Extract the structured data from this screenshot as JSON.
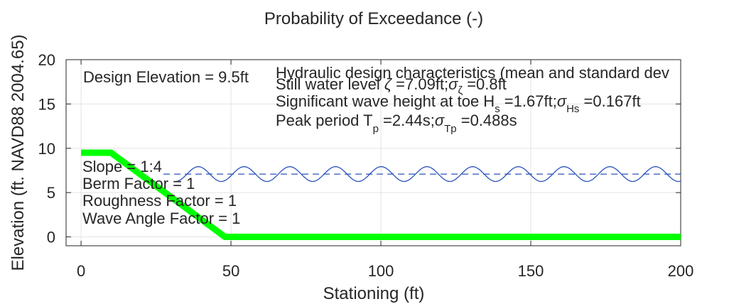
{
  "colors": {
    "profile": "#00ff00",
    "water": "#2a52be",
    "grid": "#e3e3e3",
    "text": "#262626",
    "axis": "#262626"
  },
  "chart_data": {
    "type": "line",
    "title": "Probability of Exceedance (-)",
    "xlabel": "Stationing (ft)",
    "ylabel": "Elevation (ft. NAVD88 2004.65)",
    "xlim": [
      -5,
      200
    ],
    "ylim": [
      -1,
      20
    ],
    "xticks": [
      0,
      50,
      100,
      150,
      200
    ],
    "yticks": [
      0,
      5,
      10,
      15,
      20
    ],
    "grid": true,
    "series": [
      {
        "type": "line",
        "style": "solid-thick",
        "x": [
          0,
          10,
          48,
          200
        ],
        "y": [
          9.5,
          9.5,
          0,
          0
        ]
      },
      {
        "type": "line",
        "style": "dashed",
        "x": [
          27.5,
          200
        ],
        "y": [
          7.09,
          7.09
        ]
      },
      {
        "type": "wave",
        "style": "solid-thin",
        "x_start": 31.5,
        "x_end": 200,
        "mean": 7.09,
        "amplitude": 0.835,
        "period": 15.25
      }
    ],
    "annotations": {
      "design_elevation": "Design Elevation = 9.5ft",
      "hydraulic_title": "Hydraulic design characteristics (mean and standard dev",
      "still_water": {
        "prefix": "Still water level ",
        "zeta": "ζ",
        "mid": " =7.09ft;",
        "sigma": "σ",
        "sub": "ζ",
        "suffix": " =0.8ft"
      },
      "wave_height": {
        "prefix": "Significant wave height at toe H",
        "sub1": "s",
        "mid": " =1.67ft;",
        "sigma": "σ",
        "sub2": "Hs",
        "suffix": " =0.167ft"
      },
      "peak_period": {
        "prefix": "Peak period T",
        "sub1": "p",
        "mid": " =2.44s;",
        "sigma": "σ",
        "sub2": "Tp",
        "suffix": " =0.488s"
      },
      "factors": [
        "Slope = 1:4",
        "Berm Factor = 1",
        "Roughness Factor = 1",
        "Wave Angle Factor = 1"
      ]
    }
  }
}
